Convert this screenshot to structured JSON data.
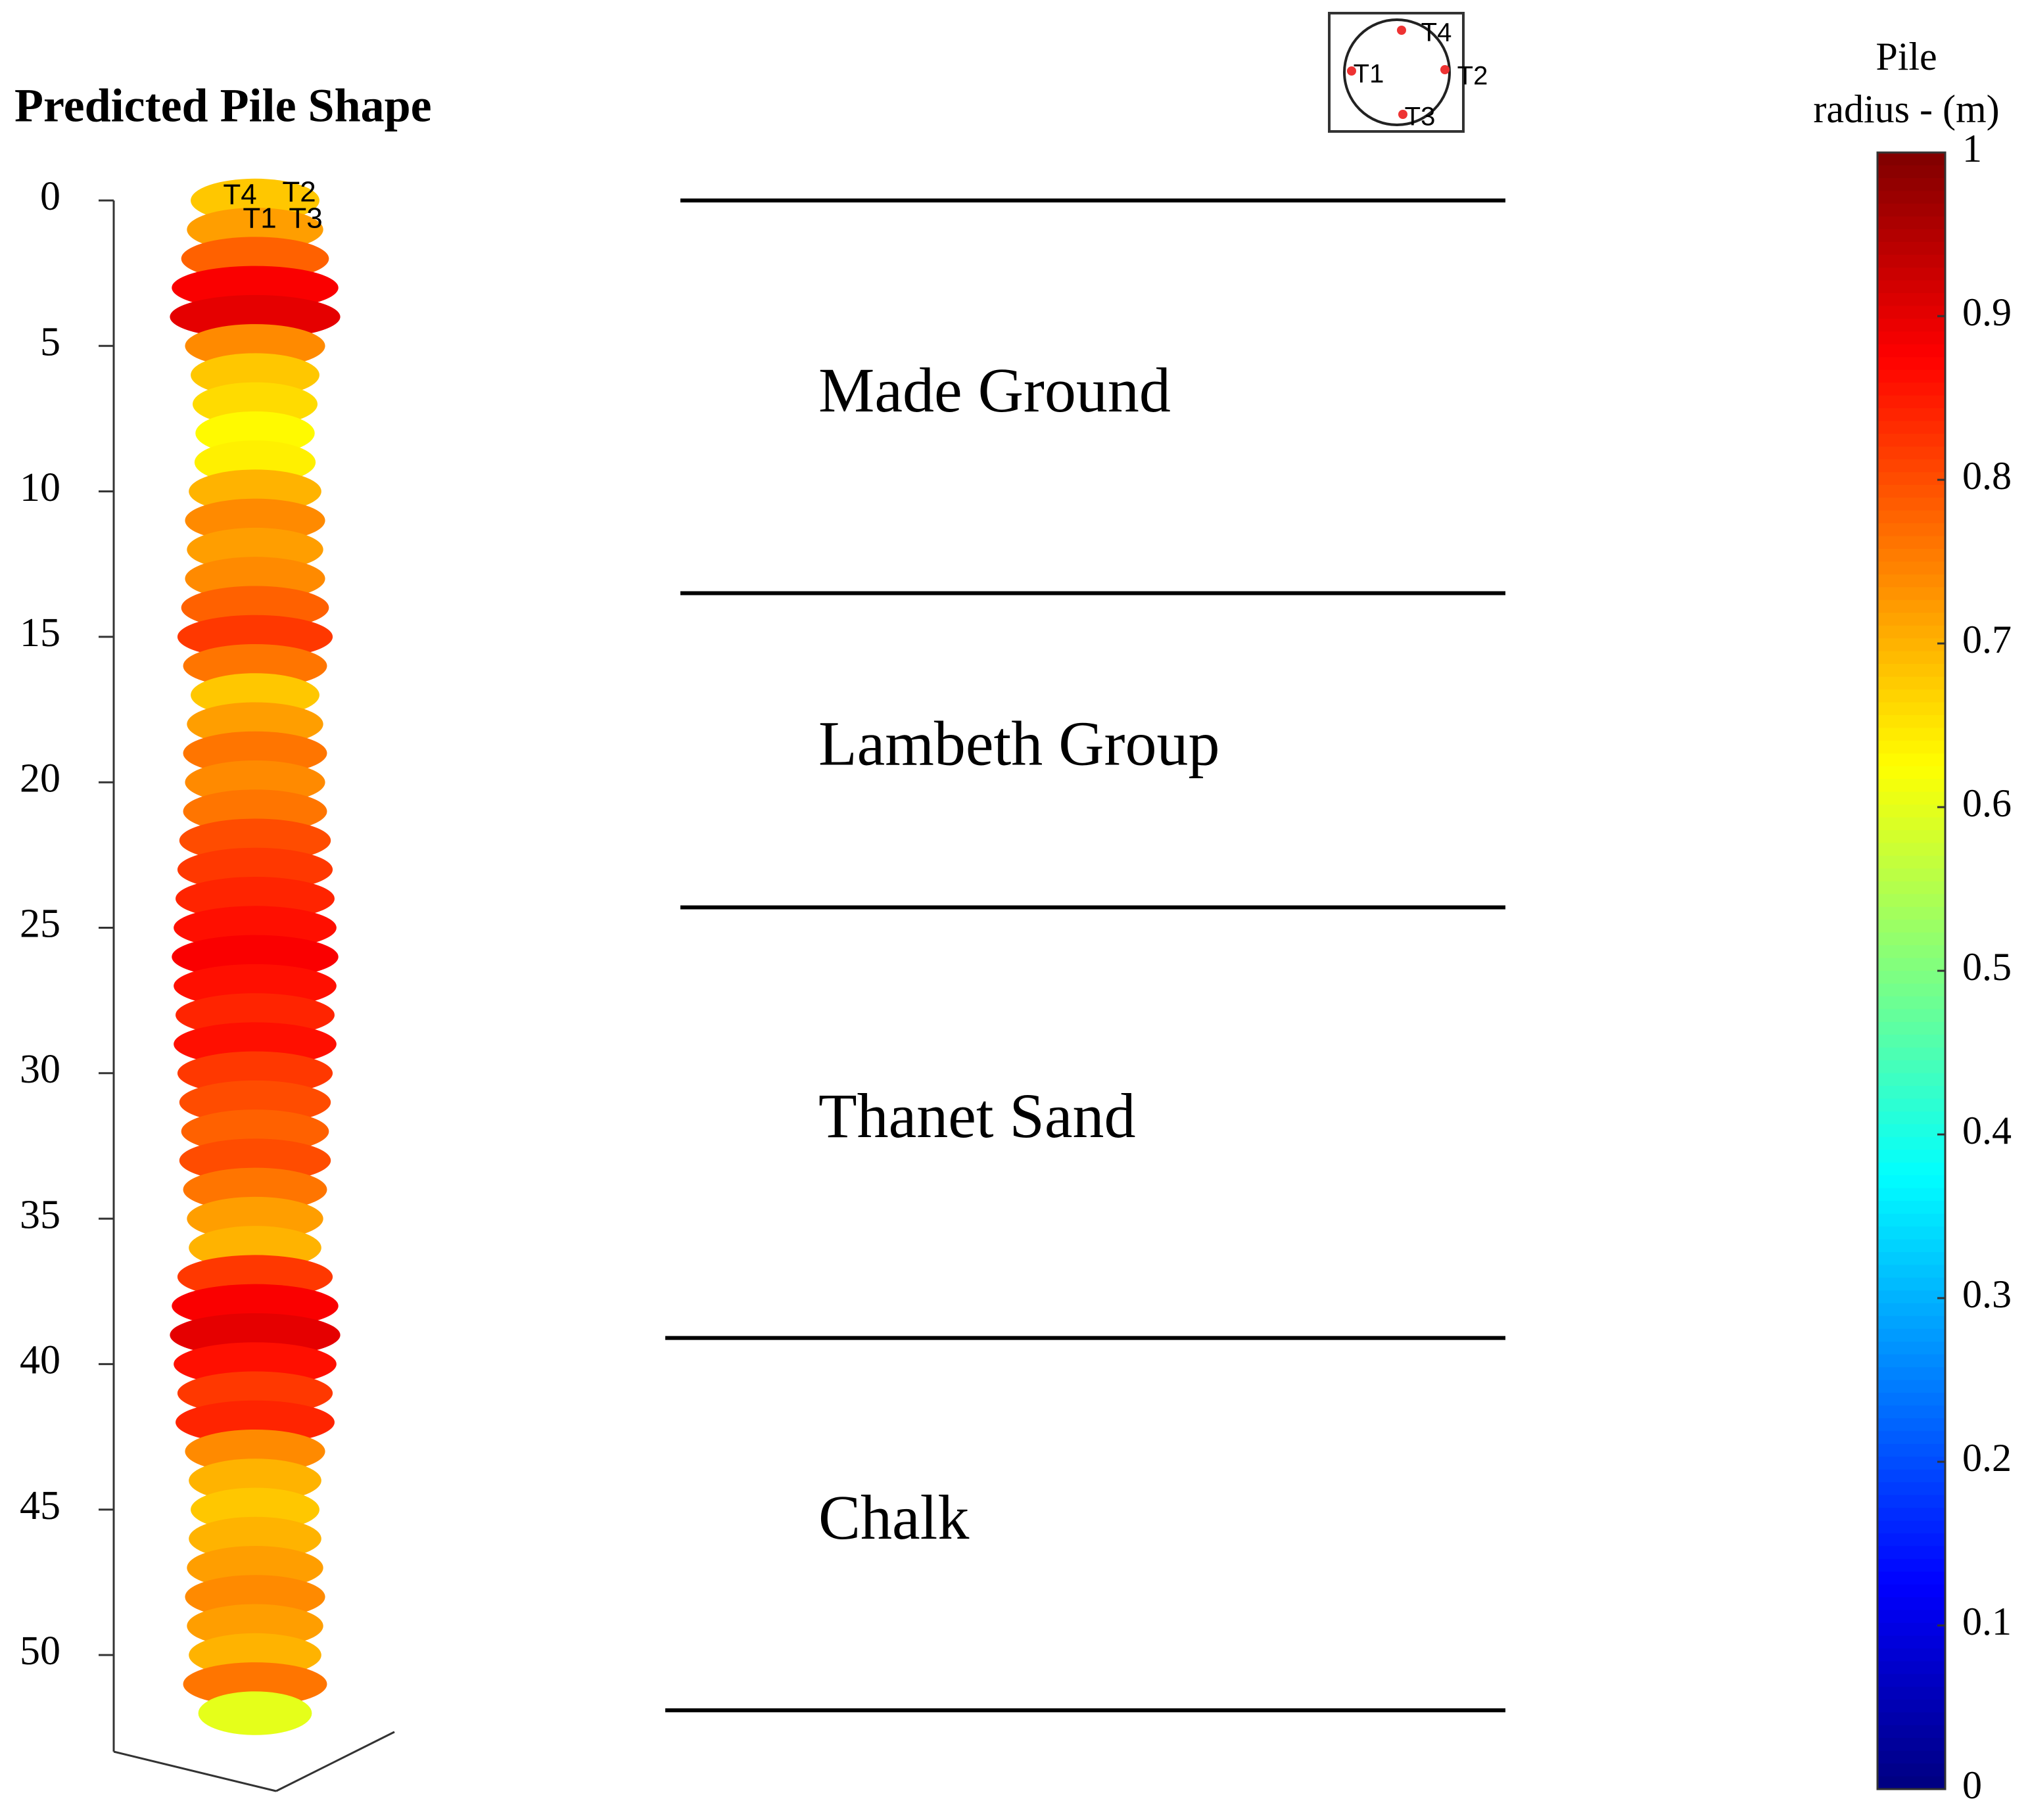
{
  "chart_data": {
    "type": "pile-profile",
    "title": "Predicted Pile Shape",
    "ylim": [
      0,
      52
    ],
    "yticks": [
      0,
      5,
      10,
      15,
      20,
      25,
      30,
      35,
      40,
      45,
      50
    ],
    "sensors": [
      "T1",
      "T2",
      "T3",
      "T4"
    ],
    "pile": {
      "depth": [
        0,
        1,
        2,
        3,
        4,
        5,
        6,
        7,
        8,
        9,
        10,
        11,
        12,
        13,
        14,
        15,
        16,
        17,
        18,
        19,
        20,
        21,
        22,
        23,
        24,
        25,
        26,
        27,
        28,
        29,
        30,
        31,
        32,
        33,
        34,
        35,
        36,
        37,
        38,
        39,
        40,
        41,
        42,
        43,
        44,
        45,
        46,
        47,
        48,
        49,
        50,
        51,
        52
      ],
      "radius": [
        0.68,
        0.72,
        0.78,
        0.88,
        0.9,
        0.74,
        0.68,
        0.66,
        0.63,
        0.64,
        0.7,
        0.74,
        0.72,
        0.74,
        0.78,
        0.82,
        0.76,
        0.68,
        0.72,
        0.76,
        0.74,
        0.76,
        0.8,
        0.82,
        0.84,
        0.86,
        0.88,
        0.86,
        0.84,
        0.86,
        0.82,
        0.8,
        0.78,
        0.8,
        0.76,
        0.72,
        0.7,
        0.82,
        0.88,
        0.9,
        0.86,
        0.82,
        0.84,
        0.74,
        0.7,
        0.68,
        0.7,
        0.72,
        0.74,
        0.72,
        0.7,
        0.76,
        0.6
      ]
    },
    "strata": [
      {
        "name": "Made Ground",
        "top": 0,
        "bottom": 13.5
      },
      {
        "name": "Lambeth Group",
        "top": 13.5,
        "bottom": 24.3
      },
      {
        "name": "Thanet Sand",
        "top": 24.3,
        "bottom": 39.1
      },
      {
        "name": "Chalk",
        "top": 39.1,
        "bottom": 51.9
      }
    ],
    "colorbar": {
      "label": [
        "Pile",
        "radius - (m)"
      ],
      "clim": [
        0,
        1
      ],
      "ticks": [
        0,
        0.1,
        0.2,
        0.3,
        0.4,
        0.5,
        0.6,
        0.7,
        0.8,
        0.9,
        1
      ]
    }
  }
}
